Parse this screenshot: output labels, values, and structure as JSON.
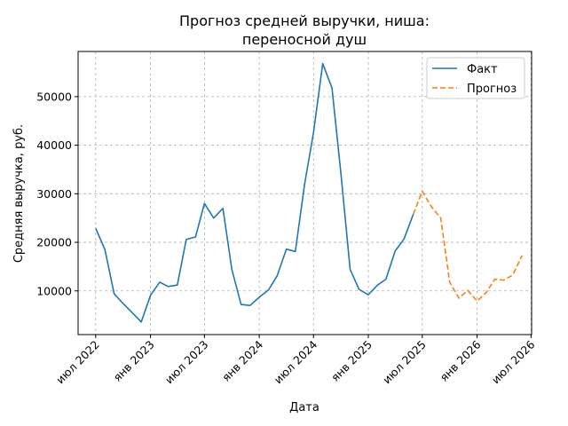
{
  "chart_data": {
    "type": "line",
    "title_lines": [
      "Прогноз средней выручки, ниша:",
      "переносной душ"
    ],
    "xlabel": "Дата",
    "ylabel": "Средняя выручка, руб.",
    "x_ticks": [
      {
        "date": "2022-07-01",
        "label": "июл 2022"
      },
      {
        "date": "2023-01-01",
        "label": "янв 2023"
      },
      {
        "date": "2023-07-01",
        "label": "июл 2023"
      },
      {
        "date": "2024-01-01",
        "label": "янв 2024"
      },
      {
        "date": "2024-07-01",
        "label": "июл 2024"
      },
      {
        "date": "2025-01-01",
        "label": "янв 2025"
      },
      {
        "date": "2025-07-01",
        "label": "июл 2025"
      },
      {
        "date": "2026-01-01",
        "label": "янв 2026"
      },
      {
        "date": "2026-07-01",
        "label": "июл 2026"
      }
    ],
    "y_ticks": [
      10000,
      20000,
      30000,
      40000,
      50000
    ],
    "xlim": [
      "2022-05-03",
      "2026-07-03"
    ],
    "ylim": [
      1000,
      59300
    ],
    "grid": true,
    "legend_position": "top-right",
    "series": [
      {
        "name": "Факт",
        "color": "#1f77b4",
        "style": "solid",
        "points": [
          [
            "2022-07-01",
            22900
          ],
          [
            "2022-08-01",
            18500
          ],
          [
            "2022-09-01",
            9400
          ],
          [
            "2022-10-01",
            7400
          ],
          [
            "2022-11-01",
            5500
          ],
          [
            "2022-12-01",
            3600
          ],
          [
            "2023-01-01",
            9100
          ],
          [
            "2023-02-01",
            11800
          ],
          [
            "2023-03-01",
            10900
          ],
          [
            "2023-04-01",
            11200
          ],
          [
            "2023-05-01",
            20600
          ],
          [
            "2023-06-01",
            21100
          ],
          [
            "2023-07-01",
            28000
          ],
          [
            "2023-08-01",
            25000
          ],
          [
            "2023-09-01",
            27000
          ],
          [
            "2023-10-01",
            14400
          ],
          [
            "2023-11-01",
            7200
          ],
          [
            "2023-12-01",
            7000
          ],
          [
            "2024-01-01",
            8700
          ],
          [
            "2024-02-01",
            10200
          ],
          [
            "2024-03-01",
            13100
          ],
          [
            "2024-04-01",
            18600
          ],
          [
            "2024-05-01",
            18100
          ],
          [
            "2024-06-01",
            31900
          ],
          [
            "2024-07-01",
            42600
          ],
          [
            "2024-08-01",
            56800
          ],
          [
            "2024-09-01",
            51800
          ],
          [
            "2024-10-01",
            34200
          ],
          [
            "2024-11-01",
            14400
          ],
          [
            "2024-12-01",
            10300
          ],
          [
            "2025-01-01",
            9200
          ],
          [
            "2025-02-01",
            11200
          ],
          [
            "2025-03-01",
            12400
          ],
          [
            "2025-04-01",
            18200
          ],
          [
            "2025-05-01",
            20700
          ],
          [
            "2025-06-01",
            25800
          ]
        ]
      },
      {
        "name": "Прогноз",
        "color": "#ff7f0e",
        "style": "dashed",
        "points": [
          [
            "2025-06-01",
            25800
          ],
          [
            "2025-07-01",
            30500
          ],
          [
            "2025-08-01",
            27300
          ],
          [
            "2025-09-01",
            25000
          ],
          [
            "2025-10-01",
            11800
          ],
          [
            "2025-11-01",
            8500
          ],
          [
            "2025-12-01",
            10100
          ],
          [
            "2026-01-01",
            7900
          ],
          [
            "2026-02-01",
            9700
          ],
          [
            "2026-03-01",
            12400
          ],
          [
            "2026-04-01",
            12200
          ],
          [
            "2026-05-01",
            13300
          ],
          [
            "2026-06-01",
            17300
          ]
        ]
      }
    ]
  }
}
